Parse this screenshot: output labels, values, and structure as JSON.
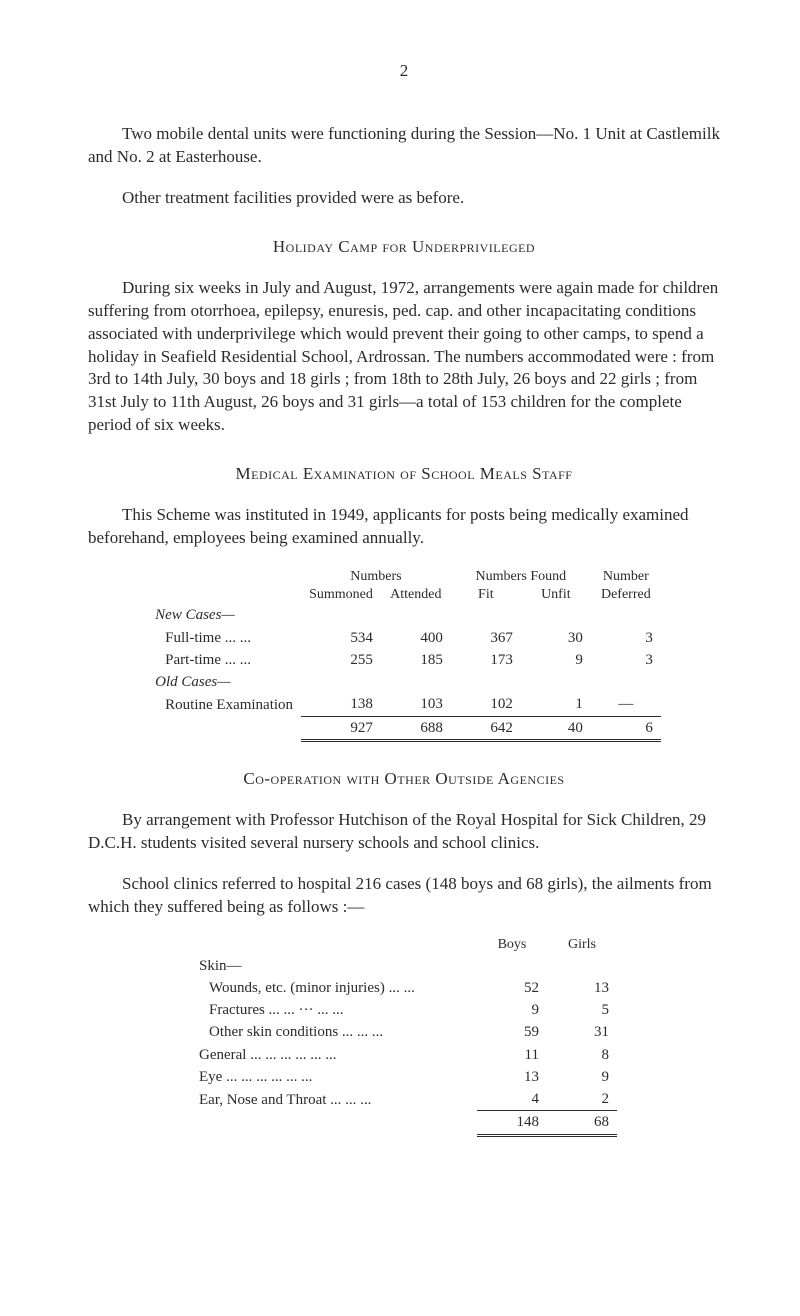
{
  "page_number": "2",
  "paragraphs": {
    "p1": "Two mobile dental units were functioning during the Session—No. 1 Unit at Castlemilk and No. 2 at Easterhouse.",
    "p2": "Other treatment facilities provided were as before.",
    "h1": "Holiday Camp for Underprivileged",
    "p3": "During six weeks in July and August, 1972, arrangements were again made for children suffering from otorrhoea, epilepsy, enuresis, ped. cap. and other incapacitating conditions associated with underprivilege which would prevent their going to other camps, to spend a holiday in Seafield Residential School, Ardrossan. The numbers accommodated were : from 3rd to 14th July, 30 boys and 18 girls ; from 18th to 28th July, 26 boys and 22 girls ; from 31st July to 11th August, 26 boys and 31 girls—a total of 153 children for the complete period of six weeks.",
    "h2": "Medical Examination of School Meals Staff",
    "p4": "This Scheme was instituted in 1949, applicants for posts being medically examined beforehand, employees being examined annually.",
    "h3": "Co-operation with Other Outside Agencies",
    "p5": "By arrangement with Professor Hutchison of the Royal Hospital for Sick Children, 29 D.C.H. students visited several nursery schools and school clinics.",
    "p6": "School clinics referred to hospital 216 cases (148 boys and 68 girls), the ailments from which they suffered being as follows :—"
  },
  "table1": {
    "headers": {
      "c1a": "Numbers",
      "c1b": "Summoned",
      "c2": "Attended",
      "c3a": "Numbers",
      "c3b": "Fit",
      "c4a": "Found",
      "c4b": "Unfit",
      "c5a": "Number",
      "c5b": "Deferred"
    },
    "groups": {
      "new": "New Cases—",
      "old": "Old Cases—"
    },
    "rows": {
      "r1": {
        "label": "Full-time       ...     ...",
        "c1": "534",
        "c2": "400",
        "c3": "367",
        "c4": "30",
        "c5": "3"
      },
      "r2": {
        "label": "Part-time      ...     ...",
        "c1": "255",
        "c2": "185",
        "c3": "173",
        "c4": "9",
        "c5": "3"
      },
      "r3": {
        "label": "Routine Examination",
        "c1": "138",
        "c2": "103",
        "c3": "102",
        "c4": "1",
        "c5": "—"
      }
    },
    "totals": {
      "c1": "927",
      "c2": "688",
      "c3": "642",
      "c4": "40",
      "c5": "6"
    }
  },
  "table2": {
    "headers": {
      "boys": "Boys",
      "girls": "Girls"
    },
    "group": "Skin—",
    "rows": {
      "r1": {
        "label": "Wounds, etc. (minor injuries)     ...     ...",
        "b": "52",
        "g": "13"
      },
      "r2": {
        "label": "Fractures      ...      ...     ···     ...     ...",
        "b": "9",
        "g": "5"
      },
      "r3": {
        "label": "Other skin conditions        ...     ...     ...",
        "b": "59",
        "g": "31"
      },
      "r4": {
        "label": "General ...     ...     ...      ...      ...      ...",
        "b": "11",
        "g": "8"
      },
      "r5": {
        "label": "Eye       ...      ...      ...      ...      ...      ...",
        "b": "13",
        "g": "9"
      },
      "r6": {
        "label": "Ear, Nose and Throat         ...     ...     ...",
        "b": "4",
        "g": "2"
      }
    },
    "totals": {
      "b": "148",
      "g": "68"
    }
  }
}
